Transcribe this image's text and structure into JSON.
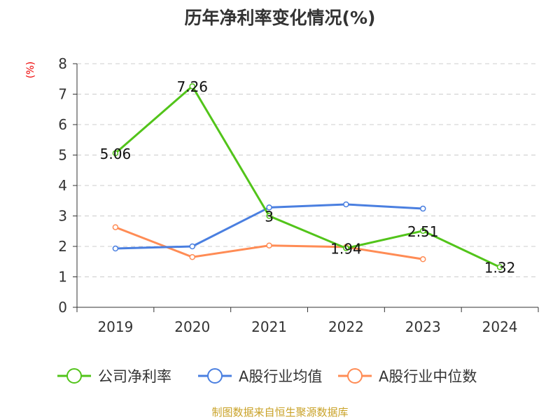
{
  "chart_data": {
    "type": "line",
    "title": "历年净利率变化情况(%)",
    "ylabel": "(%)",
    "xlabel": "",
    "categories": [
      "2019",
      "2020",
      "2021",
      "2022",
      "2023",
      "2024"
    ],
    "ylim": [
      0,
      8
    ],
    "yticks": [
      "0",
      "1",
      "2",
      "3",
      "4",
      "5",
      "6",
      "7",
      "8"
    ],
    "grid": true,
    "legend_position": "bottom",
    "series": [
      {
        "name": "公司净利率",
        "color": "#52c41a",
        "values": [
          5.06,
          7.26,
          3,
          1.94,
          2.51,
          1.32
        ],
        "labels": [
          "5.06",
          "7.26",
          "3",
          "1.94",
          "2.51",
          "1.32"
        ]
      },
      {
        "name": "A股行业均值",
        "color": "#4a7fe0",
        "values": [
          1.93,
          2.0,
          3.28,
          3.38,
          3.24,
          null
        ]
      },
      {
        "name": "A股行业中位数",
        "color": "#ff8c55",
        "values": [
          2.63,
          1.65,
          2.03,
          1.98,
          1.58,
          null
        ]
      }
    ]
  },
  "source": "制图数据来自恒生聚源数据库"
}
